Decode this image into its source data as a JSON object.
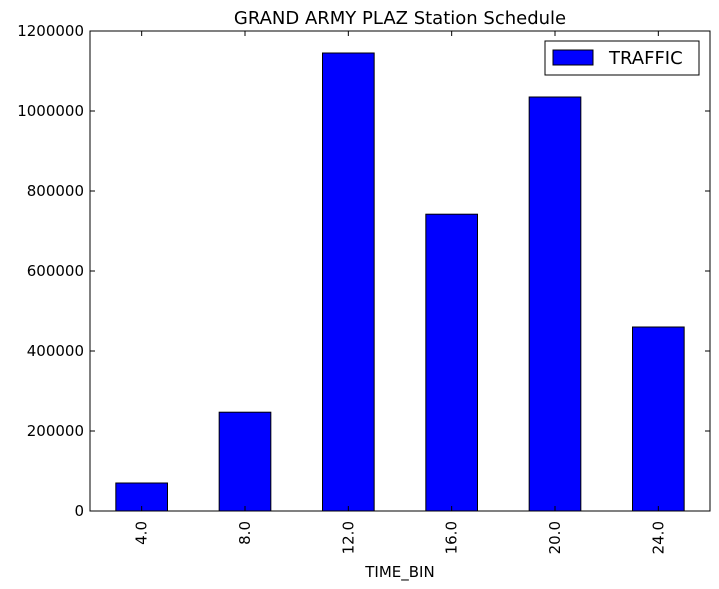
{
  "chart_data": {
    "type": "bar",
    "title": "GRAND ARMY PLAZ Station Schedule",
    "xlabel": "TIME_BIN",
    "ylabel": "",
    "categories": [
      "4.0",
      "8.0",
      "12.0",
      "16.0",
      "20.0",
      "24.0"
    ],
    "series": [
      {
        "name": "TRAFFIC",
        "values": [
          70000,
          247000,
          1145000,
          742000,
          1035000,
          460000
        ]
      }
    ],
    "ylim": [
      0,
      1200000
    ],
    "yticks": [
      "0",
      "200000",
      "400000",
      "600000",
      "800000",
      "1000000",
      "1200000"
    ],
    "grid": false,
    "legend_position": "top-right",
    "bar_color": "#0000ff",
    "edge_color": "#000000"
  }
}
